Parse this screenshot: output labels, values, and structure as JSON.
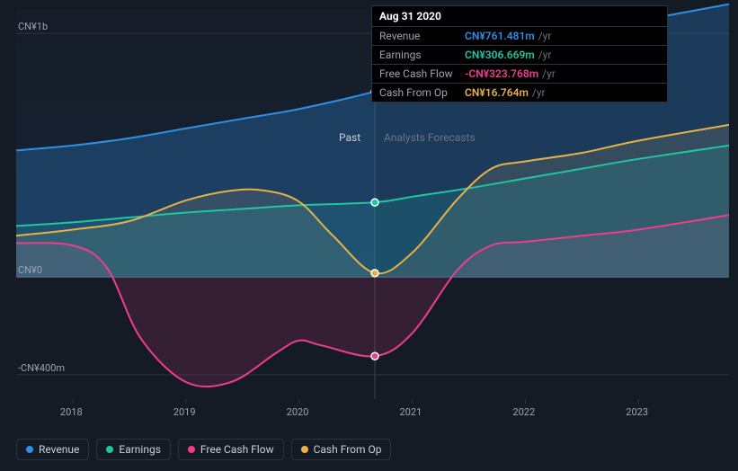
{
  "chart": {
    "type": "line-area",
    "background_color": "#151b24",
    "grid_color": "#2a3340",
    "past_fill": "rgba(30,60,110,0.22)",
    "past_fill_top": "rgba(30,60,110,0.05)",
    "section_labels": {
      "past": "Past",
      "forecast": "Analysts Forecasts"
    },
    "x": {
      "min": 2017.5,
      "max": 2023.8,
      "ticks": [
        2018,
        2019,
        2020,
        2021,
        2022,
        2023
      ],
      "tick_labels": [
        "2018",
        "2019",
        "2020",
        "2021",
        "2022",
        "2023"
      ],
      "label_fontsize": 11,
      "label_color": "#9aa4b0",
      "divider_at": 2020.67
    },
    "y": {
      "min": -500,
      "max": 1100,
      "ticks": [
        -400,
        0,
        1000
      ],
      "tick_labels": [
        "-CN¥400m",
        "CN¥0",
        "CN¥1b"
      ],
      "label_fontsize": 11,
      "label_color": "#9aa4b0"
    },
    "y_gridlines": [
      371,
      129
    ],
    "series": [
      {
        "key": "revenue",
        "name": "Revenue",
        "color": "#2f8ee6",
        "line_width": 2,
        "fill_opacity": 0.28,
        "points": [
          [
            2017.5,
            520
          ],
          [
            2018,
            540
          ],
          [
            2018.5,
            570
          ],
          [
            2019,
            610
          ],
          [
            2019.5,
            650
          ],
          [
            2020,
            690
          ],
          [
            2020.67,
            761.5
          ],
          [
            2021,
            810
          ],
          [
            2021.5,
            870
          ],
          [
            2022,
            935
          ],
          [
            2022.5,
            995
          ],
          [
            2023,
            1050
          ],
          [
            2023.8,
            1120
          ]
        ]
      },
      {
        "key": "earnings",
        "name": "Earnings",
        "color": "#1fc6a2",
        "line_width": 2,
        "fill_opacity": 0.16,
        "points": [
          [
            2017.5,
            210
          ],
          [
            2018,
            225
          ],
          [
            2018.5,
            245
          ],
          [
            2019,
            265
          ],
          [
            2019.5,
            280
          ],
          [
            2020,
            295
          ],
          [
            2020.67,
            306.7
          ],
          [
            2021,
            330
          ],
          [
            2021.5,
            365
          ],
          [
            2022,
            405
          ],
          [
            2022.5,
            445
          ],
          [
            2023,
            485
          ],
          [
            2023.8,
            540
          ]
        ]
      },
      {
        "key": "cash_op",
        "name": "Cash From Op",
        "color": "#e8b148",
        "line_width": 2,
        "fill_opacity": 0.16,
        "points": [
          [
            2017.5,
            170
          ],
          [
            2018,
            195
          ],
          [
            2018.5,
            230
          ],
          [
            2019,
            315
          ],
          [
            2019.4,
            355
          ],
          [
            2019.7,
            355
          ],
          [
            2020,
            310
          ],
          [
            2020.3,
            170
          ],
          [
            2020.67,
            16.8
          ],
          [
            2021,
            100
          ],
          [
            2021.4,
            320
          ],
          [
            2021.7,
            445
          ],
          [
            2022,
            475
          ],
          [
            2022.5,
            510
          ],
          [
            2023,
            560
          ],
          [
            2023.8,
            625
          ]
        ]
      },
      {
        "key": "fcf",
        "name": "Free Cash Flow",
        "color": "#ef3d8e",
        "line_width": 2,
        "fill_opacity": 0.14,
        "points": [
          [
            2017.5,
            140
          ],
          [
            2018,
            130
          ],
          [
            2018.3,
            40
          ],
          [
            2018.6,
            -250
          ],
          [
            2019,
            -430
          ],
          [
            2019.4,
            -430
          ],
          [
            2019.8,
            -310
          ],
          [
            2020,
            -260
          ],
          [
            2020.2,
            -280
          ],
          [
            2020.67,
            -323.8
          ],
          [
            2021,
            -230
          ],
          [
            2021.4,
            30
          ],
          [
            2021.7,
            130
          ],
          [
            2022,
            145
          ],
          [
            2022.5,
            170
          ],
          [
            2023,
            195
          ],
          [
            2023.8,
            255
          ]
        ]
      }
    ],
    "markers_at_x": 2020.67,
    "marker_stroke": "#ffffff",
    "marker_radius": 4
  },
  "tooltip": {
    "title": "Aug 31 2020",
    "unit": "/yr",
    "rows": [
      {
        "label": "Revenue",
        "value": "CN¥761.481m",
        "color": "#2f8ee6"
      },
      {
        "label": "Earnings",
        "value": "CN¥306.669m",
        "color": "#1fc6a2"
      },
      {
        "label": "Free Cash Flow",
        "value": "-CN¥323.768m",
        "color": "#ef3d8e"
      },
      {
        "label": "Cash From Op",
        "value": "CN¥16.764m",
        "color": "#e8b148"
      }
    ]
  },
  "legend": [
    {
      "key": "revenue",
      "label": "Revenue",
      "color": "#2f8ee6"
    },
    {
      "key": "earnings",
      "label": "Earnings",
      "color": "#1fc6a2"
    },
    {
      "key": "fcf",
      "label": "Free Cash Flow",
      "color": "#ef3d8e"
    },
    {
      "key": "cash_op",
      "label": "Cash From Op",
      "color": "#e8b148"
    }
  ]
}
